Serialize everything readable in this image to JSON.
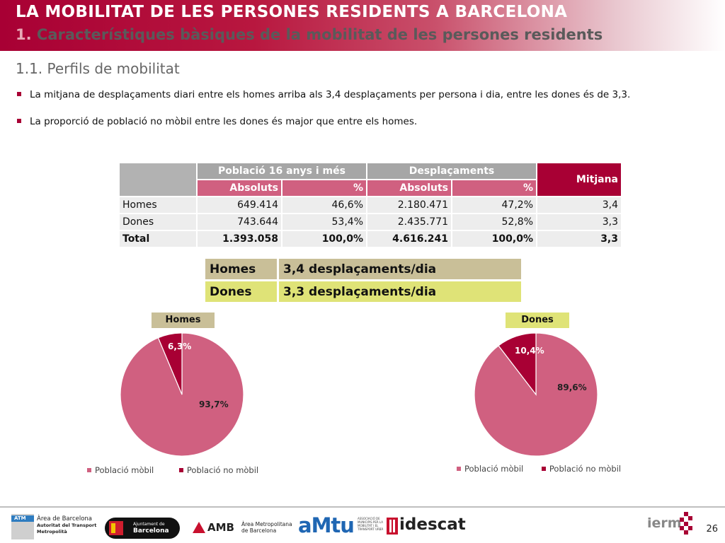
{
  "header": {
    "title": "LA MOBILITAT DE LES PERSONES RESIDENTS A BARCELONA",
    "subtitle_num": "1.",
    "subtitle_text": "Característiques bàsiques de la mobilitat de les persones residents"
  },
  "section_title": "1.1. Perfils de mobilitat",
  "bullets": [
    "La mitjana de desplaçaments diari entre els homes arriba als 3,4 desplaçaments per persona i dia, entre les dones és de 3,3.",
    "La proporció de població no mòbil entre les dones és major que entre els homes."
  ],
  "table": {
    "group_pob": "Població 16 anys i més",
    "group_desp": "Desplaçaments",
    "col_mitjana": "Mitjana",
    "sub_abs": "Absoluts",
    "sub_pct": "%",
    "rows": [
      {
        "label": "Homes",
        "pob_abs": "649.414",
        "pob_pct": "46,6%",
        "desp_abs": "2.180.471",
        "desp_pct": "47,2%",
        "mitjana": "3,4"
      },
      {
        "label": "Dones",
        "pob_abs": "743.644",
        "pob_pct": "53,4%",
        "desp_abs": "2.435.771",
        "desp_pct": "52,8%",
        "mitjana": "3,3"
      },
      {
        "label": "Total",
        "pob_abs": "1.393.058",
        "pob_pct": "100,0%",
        "desp_abs": "4.616.241",
        "desp_pct": "100,0%",
        "mitjana": "3,3"
      }
    ]
  },
  "summary": [
    {
      "label": "Homes",
      "value": "3,4 desplaçaments/dia"
    },
    {
      "label": "Dones",
      "value": "3,3 desplaçaments/dia"
    }
  ],
  "chart_data": [
    {
      "type": "pie",
      "title": "Homes",
      "title_bg": "#c9bf98",
      "categories": [
        "Població mòbil",
        "Població no mòbil"
      ],
      "values": [
        93.7,
        6.3
      ],
      "labels": [
        "93,7%",
        "6,3%"
      ],
      "colors": [
        "#d06080",
        "#a80034"
      ],
      "legend_position": "bottom"
    },
    {
      "type": "pie",
      "title": "Dones",
      "title_bg": "#dfe377",
      "categories": [
        "Població mòbil",
        "Població no mòbil"
      ],
      "values": [
        89.6,
        10.4
      ],
      "labels": [
        "89,6%",
        "10,4%"
      ],
      "colors": [
        "#d06080",
        "#a80034"
      ],
      "legend_position": "bottom"
    }
  ],
  "footer": {
    "atm_badge": "ATM",
    "atm_line1": "Àrea de Barcelona",
    "atm_line2": "Autoritat del Transport",
    "atm_line3": "Metropolità",
    "ajunt_line1": "Ajuntament de",
    "ajunt_line2": "Barcelona",
    "amb_name": "AMB",
    "amb_line1": "Àrea Metropolitana",
    "amb_line2": "de Barcelona",
    "amtu_name": "aMtu",
    "amtu_small": "ASSOCIACIÓ DE MUNICIPIS PER LA MOBILITAT I EL TRANSPORT URBÀ",
    "idescat_name": "idescat",
    "iermb_name": "ierm",
    "page_number": "26"
  },
  "colors": {
    "brand": "#a80034",
    "pie_mobil": "#d06080",
    "pie_no_mobil": "#a80034"
  }
}
